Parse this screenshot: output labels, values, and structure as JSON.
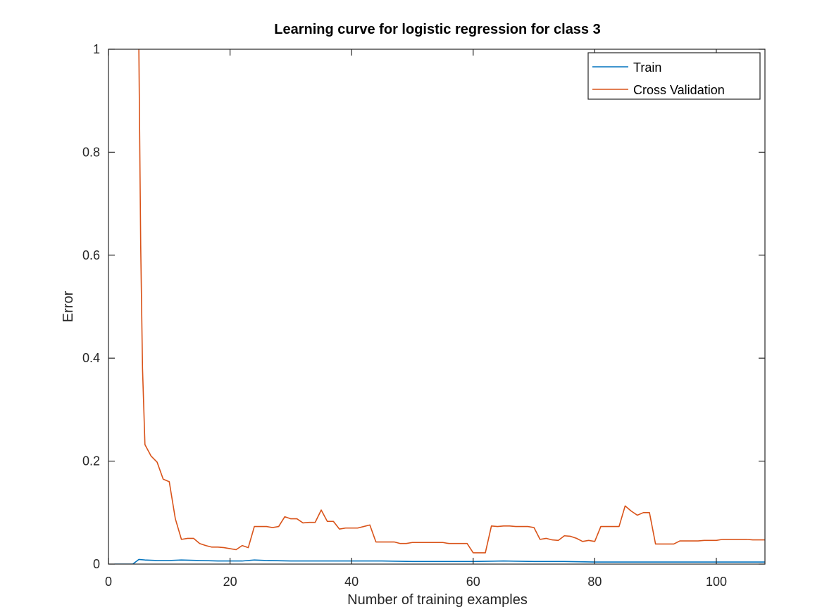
{
  "chart_data": {
    "type": "line",
    "title": "Learning curve for logistic regression for class 3",
    "xlabel": "Number of training examples",
    "ylabel": "Error",
    "xlim": [
      0,
      108
    ],
    "ylim": [
      0,
      1
    ],
    "xticks": [
      0,
      20,
      40,
      60,
      80,
      100
    ],
    "yticks": [
      0,
      0.2,
      0.4,
      0.6,
      0.8,
      1
    ],
    "grid": false,
    "legend_position": "top-right",
    "series": [
      {
        "name": "Train",
        "color": "#0072bd",
        "x": [
          1,
          2,
          3,
          4,
          5,
          6,
          8,
          10,
          12,
          15,
          18,
          20,
          22,
          24,
          26,
          30,
          35,
          40,
          45,
          50,
          55,
          60,
          65,
          70,
          75,
          80,
          85,
          90,
          95,
          100,
          105,
          108
        ],
        "y": [
          0,
          0,
          0,
          0,
          0.009,
          0.008,
          0.007,
          0.007,
          0.008,
          0.007,
          0.006,
          0.006,
          0.006,
          0.008,
          0.007,
          0.006,
          0.006,
          0.006,
          0.006,
          0.005,
          0.005,
          0.005,
          0.006,
          0.005,
          0.005,
          0.004,
          0.004,
          0.004,
          0.004,
          0.004,
          0.004,
          0.004
        ]
      },
      {
        "name": "Cross Validation",
        "color": "#d95319",
        "x": [
          5,
          5.3,
          5.6,
          6,
          7,
          8,
          9,
          10,
          11,
          12,
          13,
          14,
          15,
          16,
          17,
          18,
          19,
          20,
          21,
          22,
          23,
          24,
          25,
          26,
          27,
          28,
          29,
          30,
          31,
          32,
          33,
          34,
          35,
          36,
          37,
          38,
          39,
          40,
          41,
          42,
          43,
          44,
          45,
          46,
          47,
          48,
          49,
          50,
          51,
          52,
          53,
          54,
          55,
          56,
          57,
          58,
          59,
          60,
          61,
          62,
          63,
          64,
          65,
          66,
          67,
          68,
          69,
          70,
          71,
          72,
          73,
          74,
          75,
          76,
          77,
          78,
          79,
          80,
          81,
          82,
          83,
          84,
          85,
          86,
          87,
          88,
          89,
          90,
          91,
          92,
          93,
          94,
          95,
          96,
          97,
          98,
          99,
          100,
          101,
          102,
          103,
          104,
          105,
          106,
          107,
          108
        ],
        "y": [
          1.0,
          0.62,
          0.38,
          0.232,
          0.21,
          0.198,
          0.165,
          0.16,
          0.088,
          0.048,
          0.05,
          0.05,
          0.04,
          0.036,
          0.033,
          0.033,
          0.032,
          0.03,
          0.028,
          0.036,
          0.032,
          0.073,
          0.073,
          0.073,
          0.071,
          0.073,
          0.092,
          0.088,
          0.088,
          0.08,
          0.081,
          0.081,
          0.105,
          0.083,
          0.083,
          0.068,
          0.07,
          0.07,
          0.07,
          0.073,
          0.076,
          0.043,
          0.043,
          0.043,
          0.043,
          0.04,
          0.04,
          0.042,
          0.042,
          0.042,
          0.042,
          0.042,
          0.042,
          0.04,
          0.04,
          0.04,
          0.04,
          0.022,
          0.022,
          0.022,
          0.074,
          0.073,
          0.074,
          0.074,
          0.073,
          0.073,
          0.073,
          0.071,
          0.048,
          0.05,
          0.047,
          0.046,
          0.055,
          0.054,
          0.05,
          0.044,
          0.046,
          0.044,
          0.073,
          0.073,
          0.073,
          0.073,
          0.113,
          0.103,
          0.095,
          0.1,
          0.1,
          0.039,
          0.039,
          0.039,
          0.039,
          0.045,
          0.045,
          0.045,
          0.045,
          0.046,
          0.046,
          0.046,
          0.048,
          0.048,
          0.048,
          0.048,
          0.048,
          0.047,
          0.047,
          0.047
        ]
      }
    ]
  }
}
